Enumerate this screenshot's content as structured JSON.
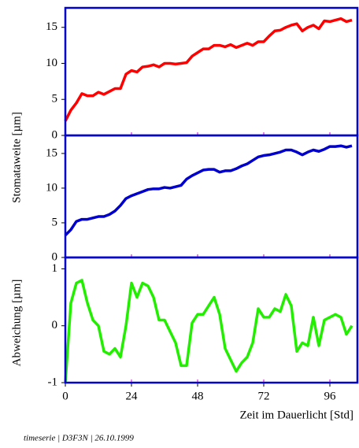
{
  "chart_data": [
    {
      "type": "line",
      "ylabel": "Stomataweite [µm]",
      "x": [
        0,
        2,
        4,
        6,
        8,
        10,
        12,
        14,
        16,
        18,
        20,
        22,
        24,
        26,
        28,
        30,
        32,
        34,
        36,
        38,
        40,
        42,
        44,
        46,
        48,
        50,
        52,
        54,
        56,
        58,
        60,
        62,
        64,
        66,
        68,
        70,
        72,
        74,
        76,
        78,
        80,
        82,
        84,
        86,
        88,
        90,
        92,
        94,
        96,
        98,
        100,
        102,
        104
      ],
      "series": [
        {
          "color": "#ff0000",
          "values": [
            2,
            3.5,
            4.5,
            5.8,
            5.5,
            5.5,
            6,
            5.7,
            6.1,
            6.5,
            6.5,
            8.5,
            9,
            8.8,
            9.5,
            9.6,
            9.8,
            9.5,
            10,
            10,
            9.9,
            10,
            10.1,
            11,
            11.5,
            12,
            12,
            12.5,
            12.5,
            12.3,
            12.6,
            12.2,
            12.5,
            12.8,
            12.5,
            13,
            13,
            13.8,
            14.5,
            14.6,
            15,
            15.3,
            15.5,
            14.5,
            15,
            15.3,
            14.8,
            15.9,
            15.8,
            16,
            16.2,
            15.8,
            16
          ]
        }
      ],
      "xlim": [
        0,
        106
      ],
      "ylim": [
        0,
        17.7
      ],
      "yticks": [
        0,
        5,
        10,
        15
      ],
      "xticks": [
        0,
        24,
        48,
        72,
        96
      ],
      "xtick_labels": false
    },
    {
      "type": "line",
      "x": [
        0,
        2,
        4,
        6,
        8,
        10,
        12,
        14,
        16,
        18,
        20,
        22,
        24,
        26,
        28,
        30,
        32,
        34,
        36,
        38,
        40,
        42,
        44,
        46,
        48,
        50,
        52,
        54,
        56,
        58,
        60,
        62,
        64,
        66,
        68,
        70,
        72,
        74,
        76,
        78,
        80,
        82,
        84,
        86,
        88,
        90,
        92,
        94,
        96,
        98,
        100,
        102,
        104
      ],
      "series": [
        {
          "color": "#0000cc",
          "values": [
            3.2,
            4,
            5.2,
            5.5,
            5.5,
            5.7,
            5.9,
            5.9,
            6.2,
            6.7,
            7.5,
            8.5,
            8.9,
            9.2,
            9.5,
            9.8,
            9.9,
            9.9,
            10.1,
            10,
            10.2,
            10.4,
            11.3,
            11.8,
            12.2,
            12.6,
            12.7,
            12.7,
            12.3,
            12.5,
            12.5,
            12.8,
            13.2,
            13.5,
            14,
            14.5,
            14.7,
            14.8,
            15,
            15.2,
            15.5,
            15.5,
            15.2,
            14.8,
            15.2,
            15.5,
            15.3,
            15.6,
            16,
            16,
            16.1,
            15.9,
            16.1
          ]
        }
      ],
      "xlim": [
        0,
        106
      ],
      "ylim": [
        0,
        17.6
      ],
      "yticks": [
        0,
        5,
        10,
        15
      ],
      "xticks": [
        0,
        24,
        48,
        72,
        96
      ],
      "xtick_labels": false
    },
    {
      "type": "line",
      "ylabel": "Abweichung [µm]",
      "xlabel": "Zeit im Dauerlicht [Std]",
      "x": [
        0,
        2,
        4,
        6,
        8,
        10,
        12,
        14,
        16,
        18,
        20,
        22,
        24,
        26,
        28,
        30,
        32,
        34,
        36,
        38,
        40,
        42,
        44,
        46,
        48,
        50,
        52,
        54,
        56,
        58,
        60,
        62,
        64,
        66,
        68,
        70,
        72,
        74,
        76,
        78,
        80,
        82,
        84,
        86,
        88,
        90,
        92,
        94,
        96,
        98,
        100,
        102,
        104
      ],
      "series": [
        {
          "color": "#22ee00",
          "values": [
            -1,
            0.4,
            0.75,
            0.8,
            0.4,
            0.1,
            0,
            -0.45,
            -0.5,
            -0.4,
            -0.55,
            0,
            0.75,
            0.5,
            0.75,
            0.7,
            0.5,
            0.1,
            0.1,
            -0.1,
            -0.3,
            -0.7,
            -0.7,
            0.05,
            0.2,
            0.2,
            0.35,
            0.5,
            0.2,
            -0.4,
            -0.6,
            -0.8,
            -0.65,
            -0.55,
            -0.3,
            0.3,
            0.15,
            0.15,
            0.3,
            0.25,
            0.55,
            0.35,
            -0.45,
            -0.3,
            -0.35,
            0.15,
            -0.35,
            0.1,
            0.15,
            0.2,
            0.15,
            -0.15,
            0
          ]
        }
      ],
      "xlim": [
        0,
        106
      ],
      "ylim": [
        -1,
        1.2
      ],
      "yticks": [
        -1,
        0,
        1
      ],
      "xticks": [
        0,
        24,
        48,
        72,
        96
      ],
      "xtick_labels": true
    }
  ],
  "footer": "timeserie | D3F3N | 26.10.1999"
}
